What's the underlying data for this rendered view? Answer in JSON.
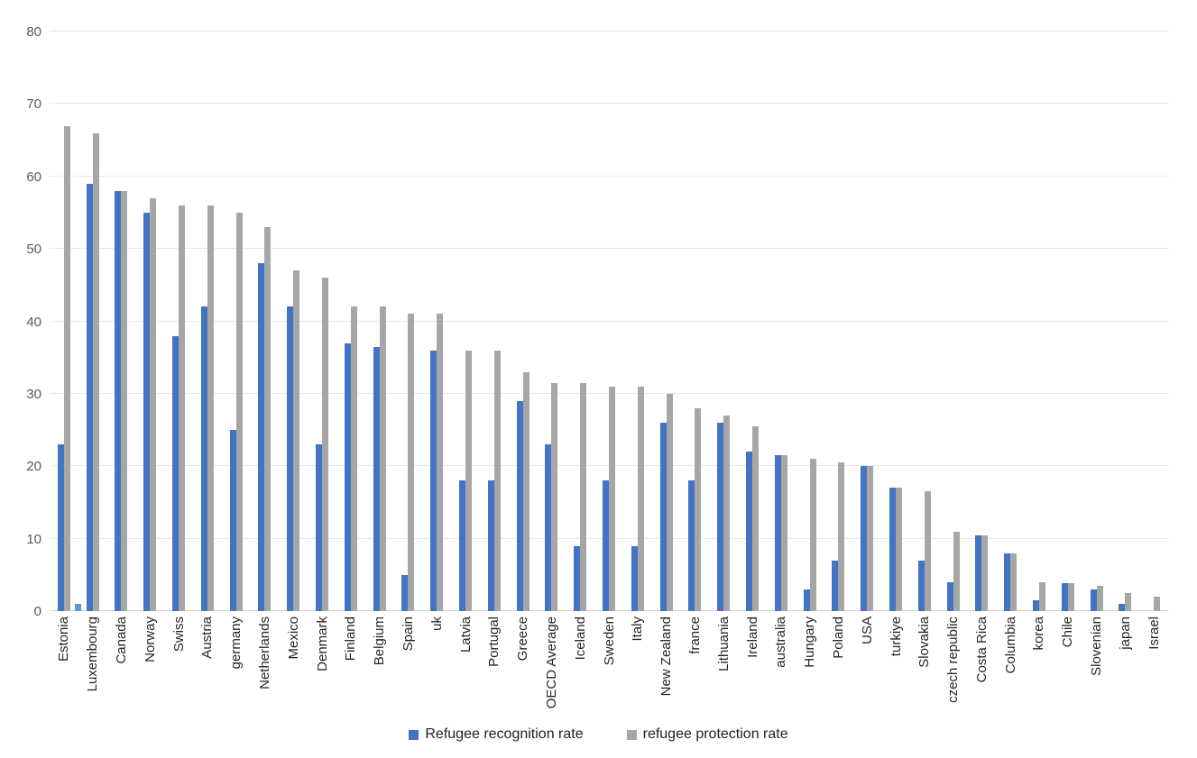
{
  "chart_data": {
    "type": "bar",
    "title": "",
    "xlabel": "",
    "ylabel": "",
    "grid": "horizontal",
    "legend_position": "bottom-center",
    "y_axis": {
      "min": 0,
      "max": 80,
      "tick_interval": 10,
      "ticks": [
        0,
        10,
        20,
        30,
        40,
        50,
        60,
        70,
        80
      ]
    },
    "categories": [
      "Estonia",
      "Luxembourg",
      "Canada",
      "Norway",
      "Swiss",
      "Austria",
      "germany",
      "Netherlands",
      "Mexico",
      "Denmark",
      "Finland",
      "Belgium",
      "Spain",
      "uk",
      "Latvia",
      "Portugal",
      "Greece",
      "OECD Average",
      "Iceland",
      "Sweden",
      "Italy",
      "New Zealand",
      "france",
      "Lithuania",
      "Ireland",
      "australia",
      "Hungary",
      "Poland",
      "USA",
      "turkiye",
      "Slovakia",
      "czech republic",
      "Costa Rica",
      "Columbia",
      "korea",
      "Chile",
      "Slovenian",
      "japan",
      "Israel"
    ],
    "series": [
      {
        "name": "Refugee recognition rate",
        "color": "#4472c4",
        "values": [
          23,
          59,
          58,
          55,
          38,
          42,
          25,
          48,
          42,
          23,
          37,
          36.5,
          5,
          36,
          18,
          18,
          29,
          23,
          9,
          18,
          9,
          26,
          18,
          26,
          22,
          21.5,
          3,
          7,
          20,
          17,
          7,
          4,
          10.5,
          8,
          1.5,
          3.8,
          3,
          1,
          0
        ]
      },
      {
        "name": "refugee protection rate",
        "color": "#a6a6a6",
        "values": [
          67,
          66,
          58,
          57,
          56,
          56,
          55,
          53,
          47,
          46,
          42,
          42,
          41,
          41,
          36,
          36,
          33,
          31.5,
          31.5,
          31,
          31,
          30,
          28,
          27,
          25.5,
          21.5,
          21,
          20.5,
          20,
          17,
          16.5,
          11,
          10.5,
          8,
          4,
          3.8,
          3.5,
          2.5,
          2
        ]
      }
    ],
    "extra_bar": {
      "category": "Estonia",
      "value": 1,
      "color": "#5b9bd5"
    }
  },
  "legend": {
    "items": [
      {
        "label": "Refugee recognition rate",
        "color": "#4472c4"
      },
      {
        "label": "refugee protection rate",
        "color": "#a6a6a6"
      }
    ]
  },
  "colors": {
    "background": "#ffffff",
    "gridline": "#e8e8e8",
    "axis_line": "#d4d4d4",
    "y_tick_text": "#595959",
    "x_label_text": "#262626"
  }
}
